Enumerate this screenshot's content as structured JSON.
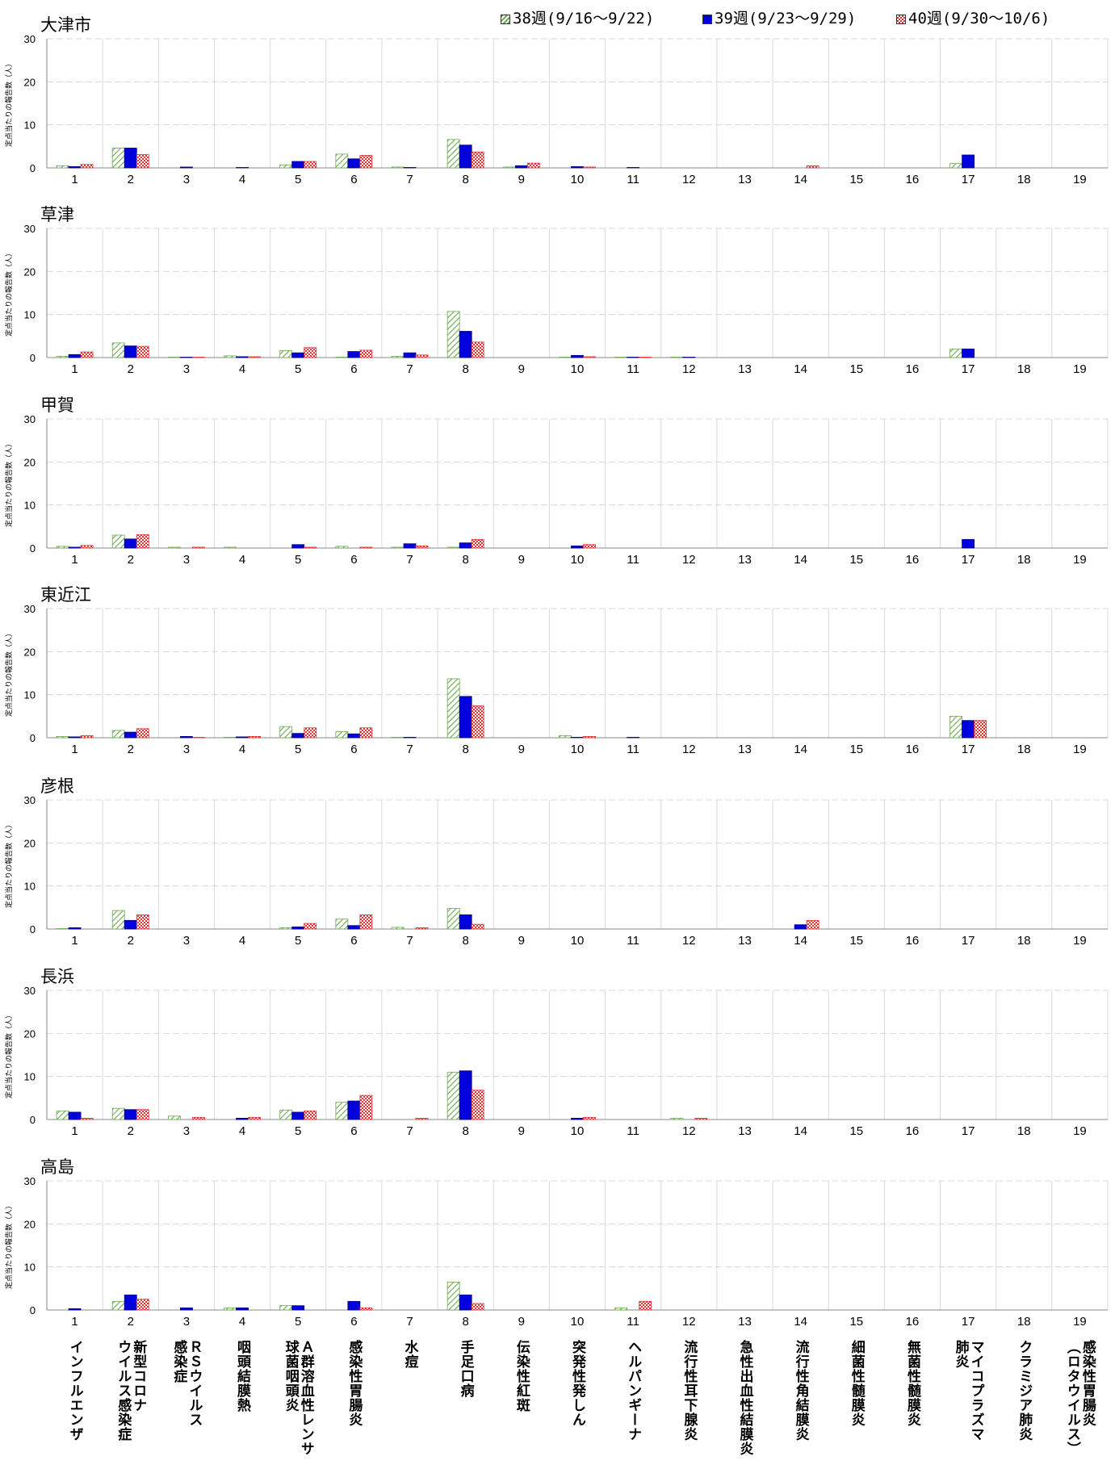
{
  "legend": [
    {
      "label": "38週(9/16〜9/22)",
      "pattern": "hatch-green"
    },
    {
      "label": "39週(9/23〜9/29)",
      "pattern": "solid-blue"
    },
    {
      "label": "40週(9/30〜10/6)",
      "pattern": "check-red"
    }
  ],
  "colors": {
    "w38": "#6aa84f",
    "w39": "#0000dd",
    "w40": "#e03030",
    "grid": "#d8d8d8"
  },
  "ylabel": "定点当たりの報告数（人）",
  "disease_names": [
    [
      "インフルエンザ"
    ],
    [
      "新型コロナ",
      "ウイルス感染症"
    ],
    [
      "ＲＳウイルス",
      "感染症"
    ],
    [
      "咽頭結膜熱"
    ],
    [
      "Ａ群溶血性レンサ",
      "球菌咽頭炎"
    ],
    [
      "感染性胃腸炎"
    ],
    [
      "水痘"
    ],
    [
      "手足口病"
    ],
    [
      "伝染性紅斑"
    ],
    [
      "突発性発しん"
    ],
    [
      "ヘルパンギーナ"
    ],
    [
      "流行性耳下腺炎"
    ],
    [
      "急性出血性結膜炎"
    ],
    [
      "流行性角結膜炎"
    ],
    [
      "細菌性髄膜炎"
    ],
    [
      "無菌性髄膜炎"
    ],
    [
      "マイコプラズマ",
      "肺炎"
    ],
    [
      "クラミジア肺炎"
    ],
    [
      "感染性胃腸炎",
      "（ロタウイルス）"
    ]
  ],
  "chart_data": [
    {
      "type": "bar",
      "title": "大津市",
      "ylabel": "定点当たりの報告数（人）",
      "ylim": [
        0,
        30
      ],
      "yticks": [
        0,
        10,
        20,
        30
      ],
      "categories": [
        "1",
        "2",
        "3",
        "4",
        "5",
        "6",
        "7",
        "8",
        "9",
        "10",
        "11",
        "12",
        "13",
        "14",
        "15",
        "16",
        "17",
        "18",
        "19"
      ],
      "series": [
        {
          "name": "38週(9/16〜9/22)",
          "values": [
            0.5,
            4.6,
            0,
            0,
            0.7,
            3.2,
            0.2,
            6.6,
            0.2,
            0,
            0,
            0,
            0,
            0,
            0,
            0,
            1,
            0,
            0
          ]
        },
        {
          "name": "39週(9/23〜9/29)",
          "values": [
            0.3,
            4.6,
            0.2,
            0.1,
            1.5,
            2.1,
            0.1,
            5.3,
            0.5,
            0.3,
            0.1,
            0,
            0,
            0,
            0,
            0,
            3,
            0,
            0
          ]
        },
        {
          "name": "40週(9/30〜10/6)",
          "values": [
            0.8,
            3.1,
            0,
            0,
            1.5,
            2.9,
            0,
            3.7,
            1.1,
            0.2,
            0,
            0,
            0,
            0.5,
            0,
            0,
            0,
            0,
            0
          ]
        }
      ]
    },
    {
      "type": "bar",
      "title": "草津",
      "ylabel": "定点当たりの報告数（人）",
      "ylim": [
        0,
        30
      ],
      "yticks": [
        0,
        10,
        20,
        30
      ],
      "categories": [
        "1",
        "2",
        "3",
        "4",
        "5",
        "6",
        "7",
        "8",
        "9",
        "10",
        "11",
        "12",
        "13",
        "14",
        "15",
        "16",
        "17",
        "18",
        "19"
      ],
      "series": [
        {
          "name": "38週(9/16〜9/22)",
          "values": [
            0.3,
            3.4,
            0.1,
            0.4,
            1.6,
            0.1,
            0.3,
            10.7,
            0,
            0.1,
            0.1,
            0.1,
            0,
            0,
            0,
            0,
            2,
            0,
            0
          ]
        },
        {
          "name": "39週(9/23〜9/29)",
          "values": [
            0.7,
            2.7,
            0.1,
            0.2,
            1.1,
            1.4,
            1.1,
            6.1,
            0,
            0.5,
            0.1,
            0.1,
            0,
            0,
            0,
            0,
            2,
            0,
            0
          ]
        },
        {
          "name": "40週(9/30〜10/6)",
          "values": [
            1.3,
            2.6,
            0.1,
            0.2,
            2.3,
            1.7,
            0.6,
            3.6,
            0,
            0.2,
            0.1,
            0,
            0,
            0,
            0,
            0,
            0,
            0,
            0
          ]
        }
      ]
    },
    {
      "type": "bar",
      "title": "甲賀",
      "ylabel": "定点当たりの報告数（人）",
      "ylim": [
        0,
        30
      ],
      "yticks": [
        0,
        10,
        20,
        30
      ],
      "categories": [
        "1",
        "2",
        "3",
        "4",
        "5",
        "6",
        "7",
        "8",
        "9",
        "10",
        "11",
        "12",
        "13",
        "14",
        "15",
        "16",
        "17",
        "18",
        "19"
      ],
      "series": [
        {
          "name": "38週(9/16〜9/22)",
          "values": [
            0.4,
            3.0,
            0.2,
            0.2,
            0,
            0.4,
            0.2,
            0.2,
            0,
            0,
            0,
            0,
            0,
            0,
            0,
            0,
            0,
            0,
            0
          ]
        },
        {
          "name": "39週(9/23〜9/29)",
          "values": [
            0.2,
            2.1,
            0,
            0,
            0.8,
            0,
            1.0,
            1.2,
            0,
            0.5,
            0,
            0,
            0,
            0,
            0,
            0,
            2,
            0,
            0
          ]
        },
        {
          "name": "40週(9/30〜10/6)",
          "values": [
            0.6,
            3.1,
            0.2,
            0,
            0.2,
            0.2,
            0.5,
            2.0,
            0,
            0.8,
            0,
            0,
            0,
            0,
            0,
            0,
            0,
            0,
            0
          ]
        }
      ]
    },
    {
      "type": "bar",
      "title": "東近江",
      "ylabel": "定点当たりの報告数（人）",
      "ylim": [
        0,
        30
      ],
      "yticks": [
        0,
        10,
        20,
        30
      ],
      "categories": [
        "1",
        "2",
        "3",
        "4",
        "5",
        "6",
        "7",
        "8",
        "9",
        "10",
        "11",
        "12",
        "13",
        "14",
        "15",
        "16",
        "17",
        "18",
        "19"
      ],
      "series": [
        {
          "name": "38週(9/16〜9/22)",
          "values": [
            0.3,
            1.7,
            0,
            0.1,
            2.6,
            1.4,
            0.1,
            13.7,
            0,
            0.5,
            0,
            0,
            0,
            0,
            0,
            0,
            5,
            0,
            0
          ]
        },
        {
          "name": "39週(9/23〜9/29)",
          "values": [
            0.2,
            1.3,
            0.3,
            0.2,
            1.0,
            0.9,
            0.1,
            9.6,
            0,
            0.1,
            0.1,
            0,
            0,
            0,
            0,
            0,
            4,
            0,
            0
          ]
        },
        {
          "name": "40週(9/30〜10/6)",
          "values": [
            0.5,
            2.1,
            0.1,
            0.3,
            2.3,
            2.3,
            0,
            7.4,
            0,
            0.3,
            0,
            0,
            0,
            0,
            0,
            0,
            4,
            0,
            0
          ]
        }
      ]
    },
    {
      "type": "bar",
      "title": "彦根",
      "ylabel": "定点当たりの報告数（人）",
      "ylim": [
        0,
        30
      ],
      "yticks": [
        0,
        10,
        20,
        30
      ],
      "categories": [
        "1",
        "2",
        "3",
        "4",
        "5",
        "6",
        "7",
        "8",
        "9",
        "10",
        "11",
        "12",
        "13",
        "14",
        "15",
        "16",
        "17",
        "18",
        "19"
      ],
      "series": [
        {
          "name": "38週(9/16〜9/22)",
          "values": [
            0.1,
            4.3,
            0,
            0,
            0.3,
            2.3,
            0.4,
            4.8,
            0,
            0,
            0,
            0,
            0,
            0,
            0,
            0,
            0,
            0,
            0
          ]
        },
        {
          "name": "39週(9/23〜9/29)",
          "values": [
            0.3,
            2.0,
            0,
            0,
            0.5,
            0.8,
            0,
            3.3,
            0,
            0,
            0,
            0,
            0,
            1,
            0,
            0,
            0,
            0,
            0
          ]
        },
        {
          "name": "40週(9/30〜10/6)",
          "values": [
            0,
            3.3,
            0,
            0,
            1.3,
            3.3,
            0.3,
            1.1,
            0,
            0,
            0,
            0,
            0,
            2,
            0,
            0,
            0,
            0,
            0
          ]
        }
      ]
    },
    {
      "type": "bar",
      "title": "長浜",
      "ylabel": "定点当たりの報告数（人）",
      "ylim": [
        0,
        30
      ],
      "yticks": [
        0,
        10,
        20,
        30
      ],
      "categories": [
        "1",
        "2",
        "3",
        "4",
        "5",
        "6",
        "7",
        "8",
        "9",
        "10",
        "11",
        "12",
        "13",
        "14",
        "15",
        "16",
        "17",
        "18",
        "19"
      ],
      "series": [
        {
          "name": "38週(9/16〜9/22)",
          "values": [
            2.0,
            2.6,
            0.8,
            0,
            2.2,
            4.0,
            0,
            11.0,
            0,
            0,
            0,
            0.3,
            0,
            0,
            0,
            0,
            0,
            0,
            0
          ]
        },
        {
          "name": "39週(9/23〜9/29)",
          "values": [
            1.7,
            2.3,
            0,
            0.3,
            1.7,
            4.3,
            0,
            11.3,
            0,
            0.3,
            0,
            0,
            0,
            0,
            0,
            0,
            0,
            0,
            0
          ]
        },
        {
          "name": "40週(9/30〜10/6)",
          "values": [
            0.3,
            2.3,
            0.5,
            0.5,
            2.0,
            5.6,
            0.3,
            6.8,
            0,
            0.5,
            0,
            0.3,
            0,
            0,
            0,
            0,
            0,
            0,
            0
          ]
        }
      ]
    },
    {
      "type": "bar",
      "title": "高島",
      "ylabel": "定点当たりの報告数（人）",
      "ylim": [
        0,
        30
      ],
      "yticks": [
        0,
        10,
        20,
        30
      ],
      "categories": [
        "1",
        "2",
        "3",
        "4",
        "5",
        "6",
        "7",
        "8",
        "9",
        "10",
        "11",
        "12",
        "13",
        "14",
        "15",
        "16",
        "17",
        "18",
        "19"
      ],
      "series": [
        {
          "name": "38週(9/16〜9/22)",
          "values": [
            0,
            2.0,
            0,
            0.5,
            1.0,
            0,
            0,
            6.5,
            0,
            0,
            0.5,
            0,
            0,
            0,
            0,
            0,
            0,
            0,
            0
          ]
        },
        {
          "name": "39週(9/23〜9/29)",
          "values": [
            0.3,
            3.5,
            0.5,
            0.5,
            1.0,
            2.0,
            0,
            3.5,
            0,
            0,
            0,
            0,
            0,
            0,
            0,
            0,
            0,
            0,
            0
          ]
        },
        {
          "name": "40週(9/30〜10/6)",
          "values": [
            0,
            2.5,
            0,
            0,
            0,
            0.5,
            0,
            1.5,
            0,
            0,
            2.0,
            0,
            0,
            0,
            0,
            0,
            0,
            0,
            0
          ]
        }
      ]
    }
  ]
}
